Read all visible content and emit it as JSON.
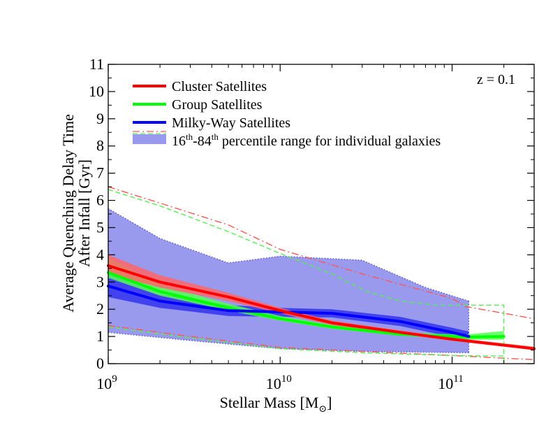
{
  "chart_data": {
    "type": "line",
    "title": "",
    "annotation": "z = 0.1",
    "xlabel": {
      "main": "Stellar Mass [M",
      "sub": "⊙",
      "end": "]"
    },
    "ylabel_lines": [
      "Average Quenching Delay Time",
      "After Infall [Gyr]"
    ],
    "x_scale": "log",
    "xlim": [
      1000000000.0,
      300000000000.0
    ],
    "ylim": [
      0,
      11
    ],
    "x_ticks": [
      {
        "value": 1000000000.0,
        "base": "10",
        "exp": "9"
      },
      {
        "value": 10000000000.0,
        "base": "10",
        "exp": "10"
      },
      {
        "value": 100000000000.0,
        "base": "10",
        "exp": "11"
      }
    ],
    "y_ticks": [
      0,
      1,
      2,
      3,
      4,
      5,
      6,
      7,
      8,
      9,
      10,
      11
    ],
    "grid": false,
    "legend_position": "top-left",
    "legend": [
      {
        "label": "Cluster Satellites",
        "color": "#ff0000",
        "kind": "line"
      },
      {
        "label": "Group Satellites",
        "color": "#00ff00",
        "kind": "line"
      },
      {
        "label": "Milky-Way Satellites",
        "color": "#0000ff",
        "kind": "line"
      },
      {
        "label_parts": [
          "16",
          "th",
          "-84",
          "th",
          " percentile range for individual galaxies"
        ],
        "color": "#9999ee",
        "kind": "band"
      }
    ],
    "series": [
      {
        "name": "Cluster Satellites",
        "color": "#ff0000",
        "band_color": "#ff6666",
        "x": [
          1000000000.0,
          2000000000.0,
          5000000000.0,
          10000000000.0,
          20000000000.0,
          50000000000.0,
          100000000000.0,
          300000000000.0
        ],
        "y": [
          3.6,
          3.0,
          2.45,
          1.95,
          1.5,
          1.15,
          0.9,
          0.55
        ],
        "err_low": [
          3.3,
          2.8,
          2.3,
          1.85,
          1.42,
          1.08,
          0.84,
          0.5
        ],
        "err_high": [
          4.0,
          3.25,
          2.6,
          2.05,
          1.58,
          1.22,
          0.96,
          0.62
        ],
        "p16_x": [
          1000000000.0,
          3000000000.0,
          10000000000.0,
          30000000000.0,
          100000000000.0,
          200000000000.0,
          300000000000.0
        ],
        "p16": [
          1.4,
          1.0,
          0.6,
          0.45,
          0.3,
          0.2,
          0.15
        ],
        "p84_x": [
          1000000000.0,
          2000000000.0,
          5000000000.0,
          10000000000.0,
          30000000000.0,
          100000000000.0,
          120000000000.0,
          200000000000.0,
          300000000000.0
        ],
        "p84": [
          6.5,
          5.9,
          5.1,
          4.2,
          3.3,
          2.4,
          2.1,
          1.85,
          1.65
        ]
      },
      {
        "name": "Group Satellites",
        "color": "#00ff00",
        "band_color": "#55ff55",
        "x": [
          1000000000.0,
          2000000000.0,
          5000000000.0,
          10000000000.0,
          20000000000.0,
          50000000000.0,
          100000000000.0,
          125000000000.0,
          200000000000.0
        ],
        "y": [
          3.35,
          2.65,
          2.05,
          1.65,
          1.35,
          1.08,
          1.0,
          0.98,
          1.0
        ],
        "err_low": [
          3.15,
          2.5,
          1.95,
          1.58,
          1.28,
          1.02,
          0.92,
          0.88,
          0.88
        ],
        "err_high": [
          3.9,
          2.9,
          2.2,
          1.75,
          1.42,
          1.15,
          1.08,
          1.08,
          1.2
        ],
        "p16_x": [
          1000000000.0,
          3000000000.0,
          10000000000.0,
          30000000000.0,
          100000000000.0,
          200000000000.0,
          200000000000.0
        ],
        "p16": [
          1.35,
          0.95,
          0.55,
          0.4,
          0.3,
          0.28,
          0.0
        ],
        "p84_x": [
          1000000000.0,
          2000000000.0,
          5000000000.0,
          10000000000.0,
          20000000000.0,
          32000000000.0,
          50000000000.0,
          80000000000.0,
          100000000000.0,
          125000000000.0,
          125000000000.0,
          200000000000.0,
          200000000000.0
        ],
        "p84": [
          6.4,
          5.8,
          4.85,
          4.05,
          3.3,
          2.65,
          2.3,
          2.15,
          2.15,
          2.15,
          2.15,
          2.15,
          0.0
        ]
      },
      {
        "name": "Milky-Way Satellites",
        "color": "#0000ff",
        "band_color": "#3333ee",
        "x": [
          1000000000.0,
          2000000000.0,
          5000000000.0,
          10000000000.0,
          20000000000.0,
          50000000000.0,
          100000000000.0,
          125000000000.0
        ],
        "y": [
          2.85,
          2.3,
          1.95,
          1.9,
          1.85,
          1.55,
          1.15,
          1.0
        ],
        "err_low": [
          2.45,
          2.05,
          1.75,
          1.72,
          1.7,
          1.38,
          0.98,
          0.85
        ],
        "err_high": [
          3.3,
          2.55,
          2.15,
          2.05,
          2.0,
          1.72,
          1.32,
          1.18
        ],
        "p16_x": [
          1000000000.0,
          3000000000.0,
          10000000000.0,
          30000000000.0,
          125000000000.0
        ],
        "p16": [
          1.15,
          0.85,
          0.55,
          0.45,
          0.4
        ],
        "p84_x": [
          1000000000.0,
          2000000000.0,
          5000000000.0,
          10000000000.0,
          30000000000.0,
          70000000000.0,
          125000000000.0
        ],
        "p84": [
          5.7,
          4.6,
          3.7,
          3.95,
          3.8,
          2.8,
          2.3
        ]
      }
    ]
  }
}
